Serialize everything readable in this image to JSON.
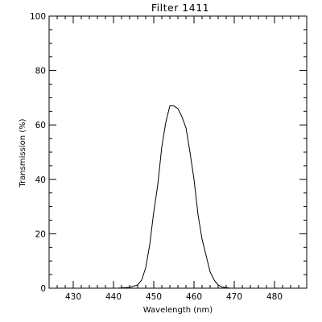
{
  "chart_data": {
    "type": "line",
    "title": "Filter 1411",
    "xlabel": "Wavelength (nm)",
    "ylabel": "Transmission (%)",
    "xlim": [
      424,
      488
    ],
    "ylim": [
      0,
      100
    ],
    "grid": false,
    "legend": "none",
    "x_ticks": [
      430,
      440,
      450,
      460,
      470,
      480
    ],
    "y_ticks": [
      0,
      20,
      40,
      60,
      80,
      100
    ],
    "x_minor_step": 2,
    "y_minor_step": 5,
    "series": [
      {
        "x": [
          441,
          442,
          444,
          446,
          447,
          448,
          449,
          450,
          451,
          452,
          453,
          454,
          455,
          456,
          457,
          458,
          459,
          460,
          461,
          462,
          463,
          464,
          465,
          466,
          467,
          468,
          469
        ],
        "y": [
          0,
          0.1,
          0.3,
          1.2,
          3.0,
          7.5,
          16,
          28,
          38,
          52,
          61,
          67,
          67,
          66,
          63,
          59,
          50,
          40,
          27,
          18,
          12,
          6,
          3,
          1.2,
          0.4,
          0.2,
          0
        ]
      }
    ]
  }
}
